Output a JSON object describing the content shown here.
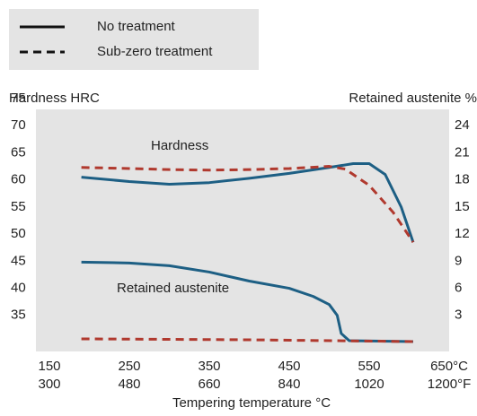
{
  "chart_data": {
    "type": "line",
    "legend": [
      {
        "label": "No treatment",
        "line_style": "solid"
      },
      {
        "label": "Sub-zero treatment",
        "line_style": "dashed"
      }
    ],
    "annotations": [
      "Hardness",
      "Retained austenite"
    ],
    "ylabel": "Hardness HRC",
    "y2label": "Retained austenite %",
    "xlabel": "Tempering temperature °C",
    "xlim": [
      150,
      650
    ],
    "xticks": [
      150,
      250,
      350,
      450,
      550,
      {
        "value": 650,
        "label": "650°C"
      }
    ],
    "x2lim": [
      300,
      1200
    ],
    "x2ticks": [
      300,
      480,
      660,
      840,
      1020,
      {
        "value": 1200,
        "label": "1200°F"
      }
    ],
    "ylim": [
      30,
      75
    ],
    "yticks": [
      35,
      40,
      45,
      50,
      55,
      60,
      65,
      70,
      75
    ],
    "y2lim": [
      0,
      27
    ],
    "y2ticks": [
      3,
      6,
      9,
      12,
      15,
      18,
      21,
      24
    ],
    "series": [
      {
        "line_style": "solid",
        "color": "#1d5f84",
        "axis": "y",
        "x": [
          190,
          250,
          300,
          350,
          400,
          450,
          500,
          530,
          550,
          570,
          590,
          605
        ],
        "values": [
          60.5,
          59.7,
          59.2,
          59.5,
          60.3,
          61.2,
          62.3,
          63,
          63,
          61,
          55,
          48.5
        ]
      },
      {
        "line_style": "dashed",
        "color": "#b0392e",
        "axis": "y",
        "x": [
          190,
          250,
          300,
          350,
          400,
          450,
          500,
          520,
          550,
          580,
          605
        ],
        "values": [
          62.3,
          62.1,
          61.9,
          61.8,
          61.9,
          62.1,
          62.5,
          62,
          59,
          54,
          48.5
        ]
      },
      {
        "line_style": "solid",
        "color": "#1d5f84",
        "axis": "y2",
        "x": [
          190,
          250,
          300,
          350,
          400,
          450,
          480,
          500,
          510,
          515,
          525,
          605
        ],
        "values": [
          8.9,
          8.8,
          8.5,
          7.8,
          6.8,
          6.0,
          5.1,
          4.2,
          3,
          1,
          0.2,
          0.1
        ]
      },
      {
        "line_style": "dashed",
        "color": "#b0392e",
        "axis": "y2",
        "x": [
          190,
          400,
          605
        ],
        "values": [
          0.4,
          0.3,
          0.1
        ]
      }
    ]
  }
}
